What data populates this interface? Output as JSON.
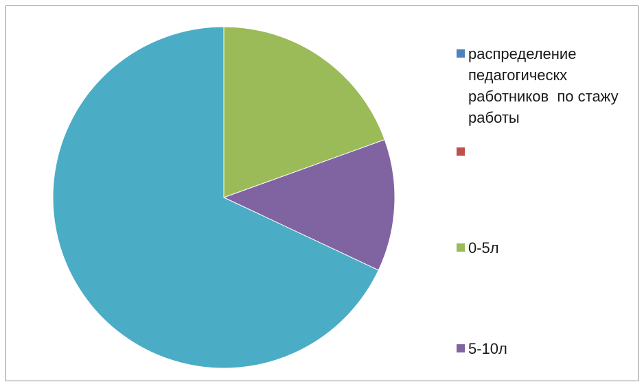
{
  "chart_data": {
    "type": "pie",
    "title": "",
    "series": [
      {
        "values": [
          0,
          0,
          19.5,
          12.5,
          68.0
        ]
      }
    ],
    "categories": [
      "распределение педагогическх работников  по стажу работы",
      "",
      "0-5л",
      "5-10л",
      ""
    ],
    "colors": [
      "#4F81BD",
      "#C0504D",
      "#9BBB59",
      "#8064A2",
      "#4BACC6"
    ],
    "legend_position": "right"
  },
  "legend": {
    "items": [
      {
        "label": "распределение педагогическх работников  по стажу работы",
        "color": "#4F81BD"
      },
      {
        "label": "",
        "color": "#C0504D"
      },
      {
        "label": "0-5л",
        "color": "#9BBB59"
      },
      {
        "label": "5-10л",
        "color": "#8064A2"
      }
    ]
  }
}
